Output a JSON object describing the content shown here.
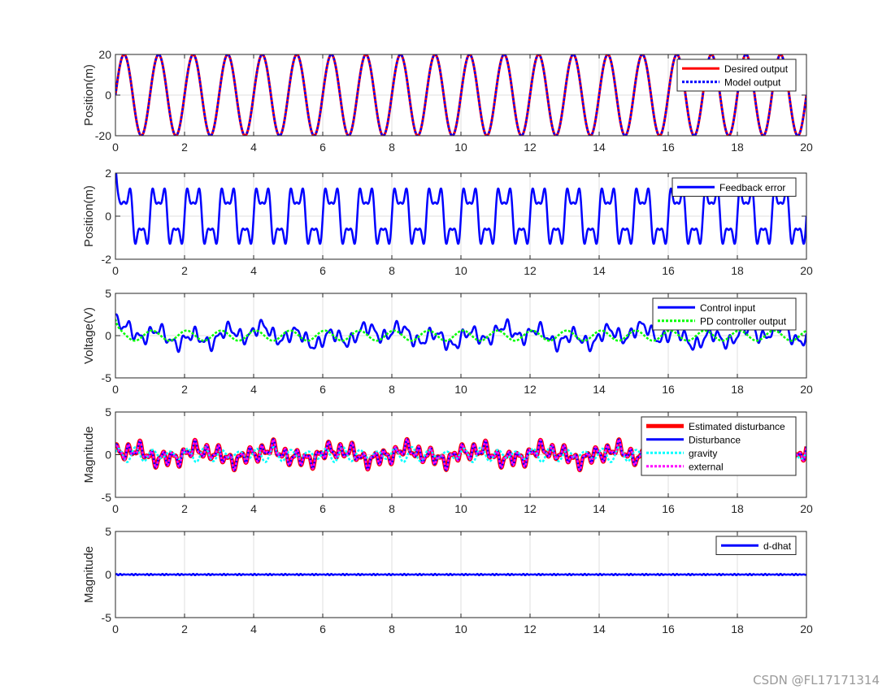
{
  "chart_data": [
    {
      "type": "line",
      "ylabel": "Position(m)",
      "xlim": [
        0,
        20
      ],
      "ylim": [
        -20,
        20
      ],
      "xticks": [
        "0",
        "2",
        "4",
        "6",
        "8",
        "10",
        "12",
        "14",
        "16",
        "18",
        "20"
      ],
      "yticks": [
        "-20",
        "0",
        "20"
      ],
      "grid": true,
      "legend_position": "top-right",
      "series": [
        {
          "name": "Desired output",
          "color": "#ff0000",
          "style": "solid",
          "signal": "sine",
          "amplitude": 20,
          "frequency": 1
        },
        {
          "name": "Model output",
          "color": "#0000ff",
          "style": "dotted",
          "signal": "sine",
          "amplitude": 20,
          "frequency": 1
        }
      ]
    },
    {
      "type": "line",
      "ylabel": "Position(m)",
      "xlim": [
        0,
        20
      ],
      "ylim": [
        -2,
        2
      ],
      "xticks": [
        "0",
        "2",
        "4",
        "6",
        "8",
        "10",
        "12",
        "14",
        "16",
        "18",
        "20"
      ],
      "yticks": [
        "-2",
        "0",
        "2"
      ],
      "grid": true,
      "legend_position": "top-right",
      "series": [
        {
          "name": "Feedback error",
          "color": "#0000ff",
          "style": "solid",
          "signal": "error",
          "amplitude": 1.5,
          "frequency": 1
        }
      ]
    },
    {
      "type": "line",
      "ylabel": "Voltage(V)",
      "xlim": [
        0,
        20
      ],
      "ylim": [
        -5,
        5
      ],
      "xticks": [
        "0",
        "2",
        "4",
        "6",
        "8",
        "10",
        "12",
        "14",
        "16",
        "18",
        "20"
      ],
      "yticks": [
        "-5",
        "0",
        "5"
      ],
      "grid": true,
      "legend_position": "top-right",
      "series": [
        {
          "name": "Control input",
          "color": "#0000ff",
          "style": "solid",
          "signal": "control",
          "amplitude": 2
        },
        {
          "name": "PD controller output",
          "color": "#00ff00",
          "style": "dotted",
          "signal": "pd",
          "amplitude": 0.6
        }
      ]
    },
    {
      "type": "line",
      "ylabel": "Magnitude",
      "xlim": [
        0,
        20
      ],
      "ylim": [
        -5,
        5
      ],
      "xticks": [
        "0",
        "2",
        "4",
        "6",
        "8",
        "10",
        "12",
        "14",
        "16",
        "18",
        "20"
      ],
      "yticks": [
        "-5",
        "0",
        "5"
      ],
      "grid": true,
      "legend_position": "top-right",
      "series": [
        {
          "name": "Estimated disturbance",
          "color": "#ff0000",
          "style": "thick",
          "signal": "disturbance"
        },
        {
          "name": "Disturbance",
          "color": "#0000ff",
          "style": "solid",
          "signal": "disturbance"
        },
        {
          "name": "gravity",
          "color": "#00ffff",
          "style": "dotted",
          "signal": "gravity",
          "amplitude": 0.9
        },
        {
          "name": "external",
          "color": "#ff00ff",
          "style": "dotted",
          "signal": "disturbance"
        }
      ]
    },
    {
      "type": "line",
      "ylabel": "Magnitude",
      "xlim": [
        0,
        20
      ],
      "ylim": [
        -5,
        5
      ],
      "xticks": [
        "0",
        "2",
        "4",
        "6",
        "8",
        "10",
        "12",
        "14",
        "16",
        "18",
        "20"
      ],
      "yticks": [
        "-5",
        "0",
        "5"
      ],
      "grid": true,
      "legend_position": "top-right",
      "series": [
        {
          "name": "d-dhat",
          "color": "#0000ff",
          "style": "solid",
          "signal": "residual",
          "amplitude": 0.08
        }
      ]
    }
  ],
  "watermark": "CSDN @FL17171314"
}
